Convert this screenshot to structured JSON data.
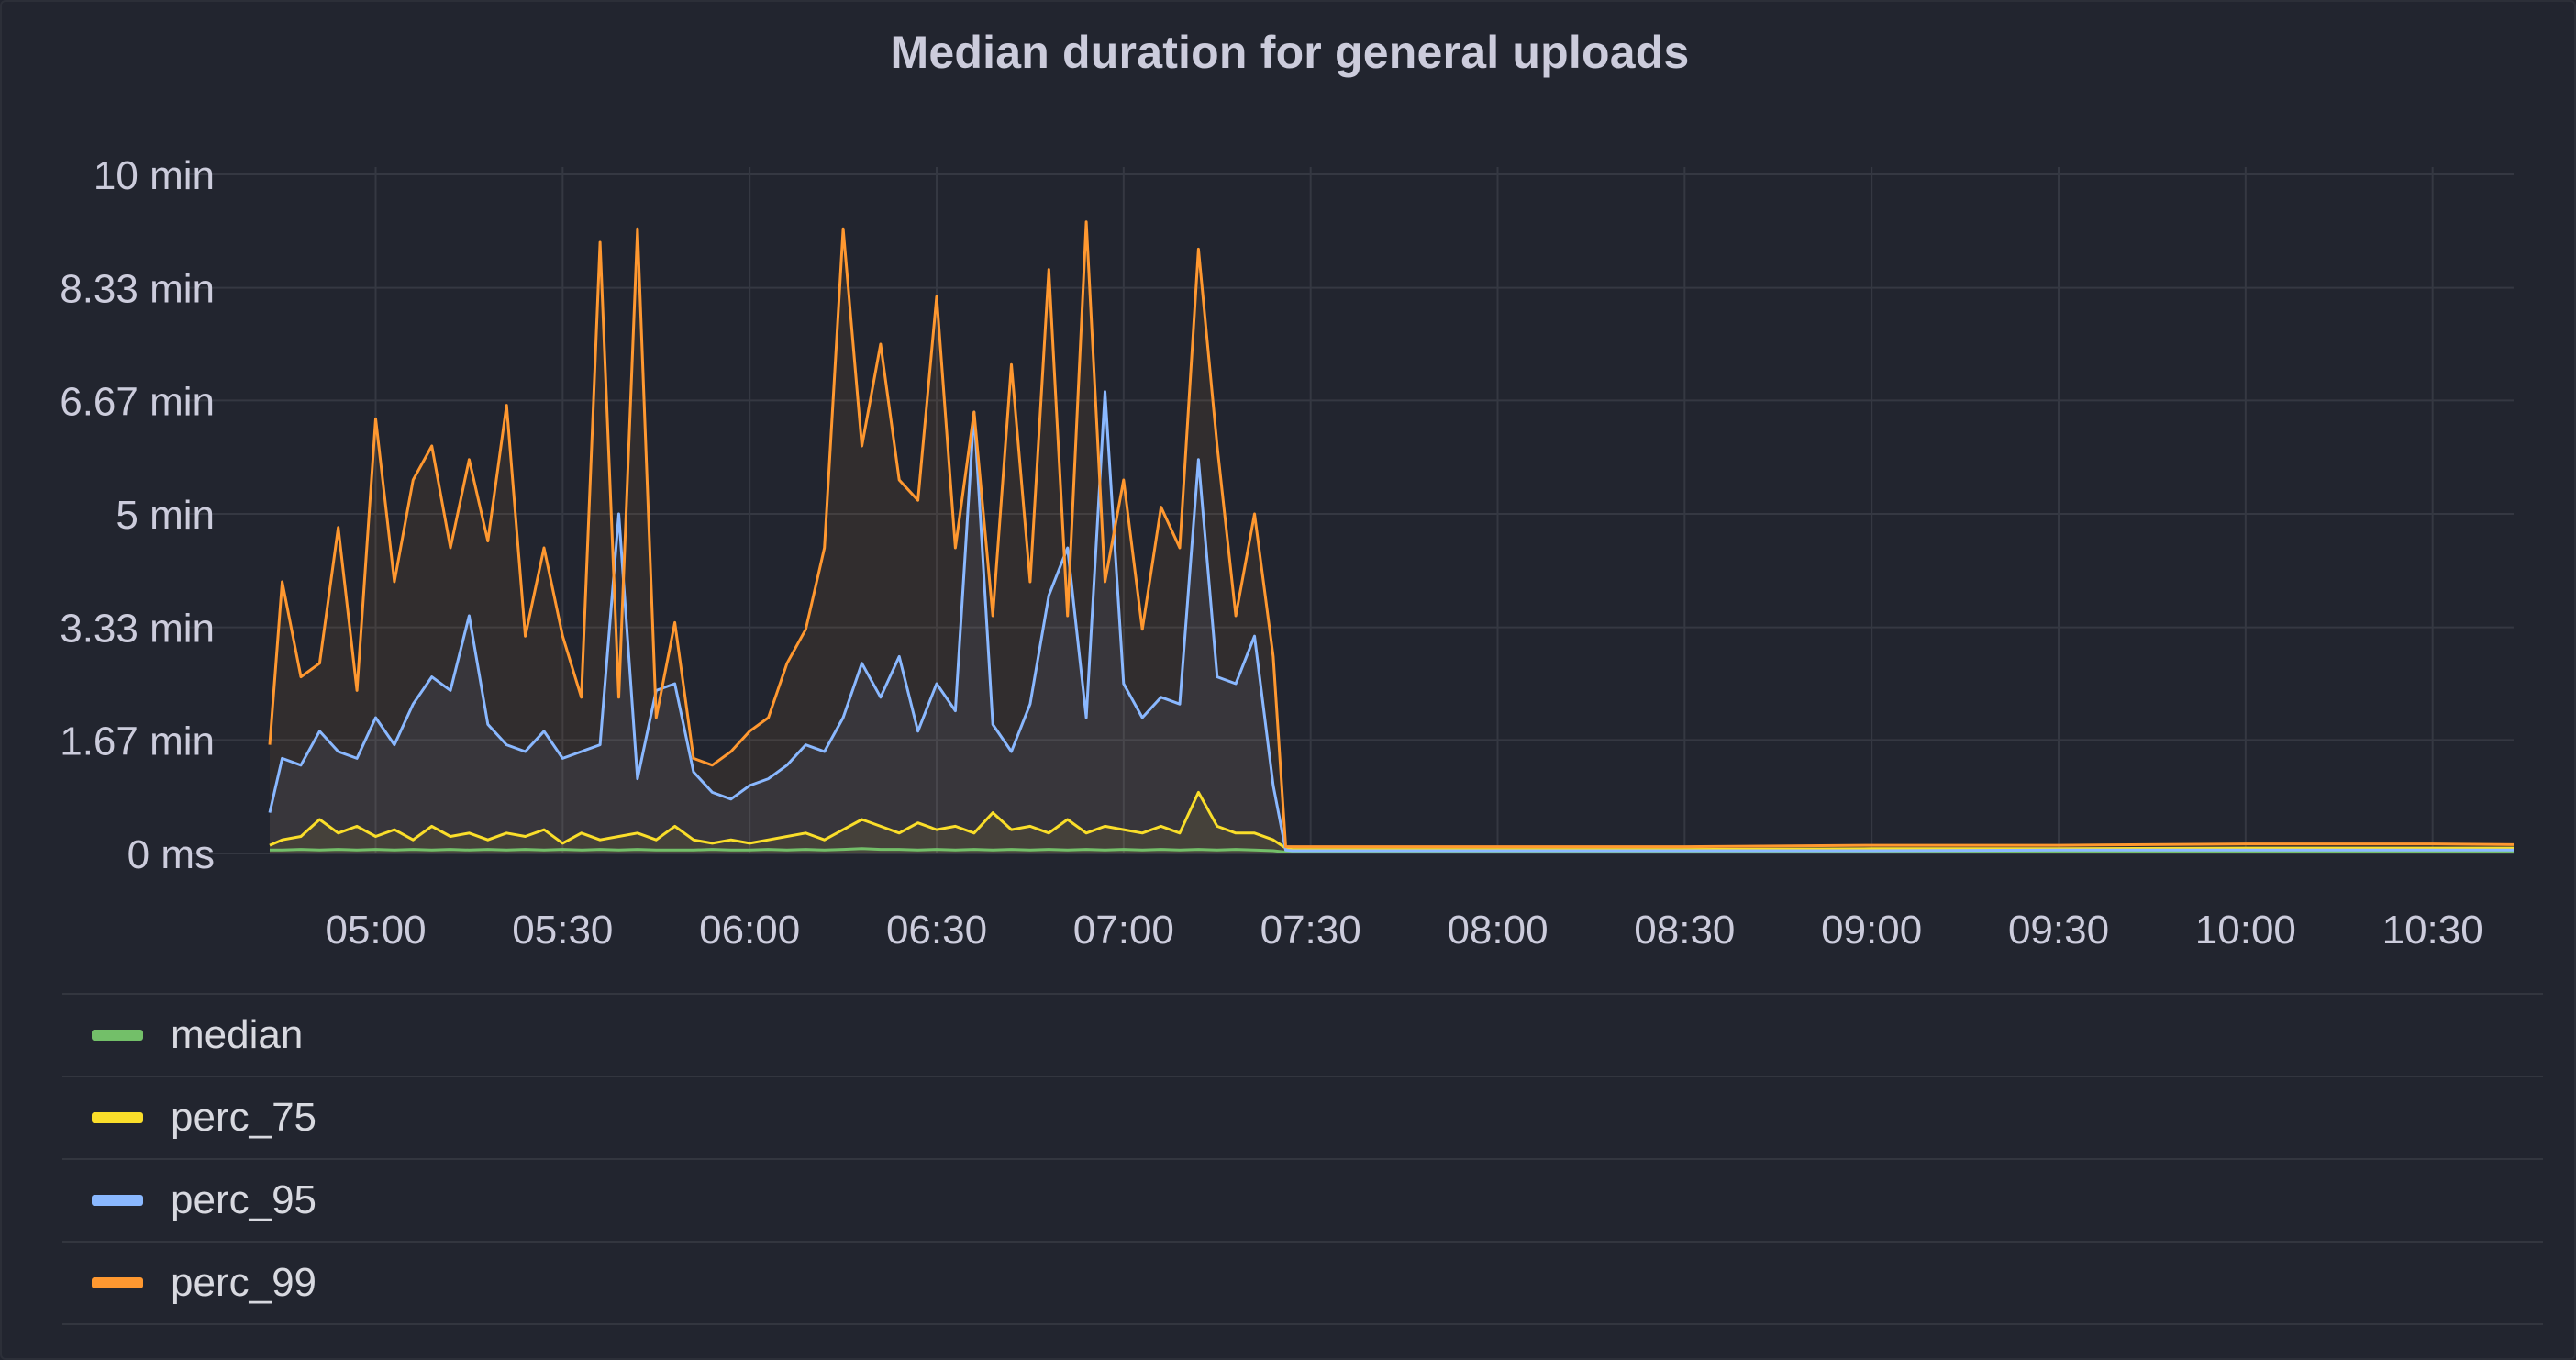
{
  "chart_data": {
    "type": "line",
    "title": "Median duration for general uploads",
    "y_unit_note": "minutes",
    "ylim": [
      0,
      10
    ],
    "y_ticks": [
      0,
      1.67,
      3.33,
      5,
      6.67,
      8.33,
      10
    ],
    "y_tick_labels": [
      "0 ms",
      "1.67 min",
      "3.33 min",
      "5 min",
      "6.67 min",
      "8.33 min",
      "10 min"
    ],
    "xlim": [
      "04:43",
      "10:43"
    ],
    "x_ticks": [
      "05:00",
      "05:30",
      "06:00",
      "06:30",
      "07:00",
      "07:30",
      "08:00",
      "08:30",
      "09:00",
      "09:30",
      "10:00",
      "10:30"
    ],
    "grid": true,
    "legend_position": "bottom",
    "x": [
      "04:43",
      "04:45",
      "04:48",
      "04:51",
      "04:54",
      "04:57",
      "05:00",
      "05:03",
      "05:06",
      "05:09",
      "05:12",
      "05:15",
      "05:18",
      "05:21",
      "05:24",
      "05:27",
      "05:30",
      "05:33",
      "05:36",
      "05:39",
      "05:42",
      "05:45",
      "05:48",
      "05:51",
      "05:54",
      "05:57",
      "06:00",
      "06:03",
      "06:06",
      "06:09",
      "06:12",
      "06:15",
      "06:18",
      "06:21",
      "06:24",
      "06:27",
      "06:30",
      "06:33",
      "06:36",
      "06:39",
      "06:42",
      "06:45",
      "06:48",
      "06:51",
      "06:54",
      "06:57",
      "07:00",
      "07:03",
      "07:06",
      "07:09",
      "07:12",
      "07:15",
      "07:18",
      "07:21",
      "07:24",
      "07:26",
      "07:27",
      "07:30",
      "08:00",
      "08:30",
      "09:00",
      "09:30",
      "10:00",
      "10:30",
      "10:43"
    ],
    "series": [
      {
        "name": "median",
        "color": "#73bf69",
        "values": [
          0.05,
          0.05,
          0.06,
          0.05,
          0.06,
          0.05,
          0.06,
          0.05,
          0.06,
          0.05,
          0.06,
          0.05,
          0.06,
          0.05,
          0.06,
          0.05,
          0.06,
          0.05,
          0.06,
          0.05,
          0.06,
          0.05,
          0.05,
          0.05,
          0.06,
          0.05,
          0.05,
          0.06,
          0.05,
          0.06,
          0.05,
          0.06,
          0.07,
          0.06,
          0.06,
          0.05,
          0.06,
          0.05,
          0.06,
          0.05,
          0.06,
          0.05,
          0.06,
          0.05,
          0.06,
          0.05,
          0.06,
          0.05,
          0.06,
          0.05,
          0.06,
          0.05,
          0.06,
          0.05,
          0.04,
          0.02,
          0.02,
          0.02,
          0.02,
          0.02,
          0.02,
          0.02,
          0.03,
          0.03,
          0.03
        ]
      },
      {
        "name": "perc_75",
        "color": "#fade2a",
        "values": [
          0.12,
          0.2,
          0.25,
          0.5,
          0.3,
          0.4,
          0.25,
          0.35,
          0.2,
          0.4,
          0.25,
          0.3,
          0.2,
          0.3,
          0.25,
          0.35,
          0.15,
          0.3,
          0.2,
          0.25,
          0.3,
          0.2,
          0.4,
          0.2,
          0.15,
          0.2,
          0.15,
          0.2,
          0.25,
          0.3,
          0.2,
          0.35,
          0.5,
          0.4,
          0.3,
          0.45,
          0.35,
          0.4,
          0.3,
          0.6,
          0.35,
          0.4,
          0.3,
          0.5,
          0.3,
          0.4,
          0.35,
          0.3,
          0.4,
          0.3,
          0.9,
          0.4,
          0.3,
          0.3,
          0.2,
          0.08,
          0.06,
          0.06,
          0.06,
          0.06,
          0.07,
          0.07,
          0.08,
          0.08,
          0.08
        ]
      },
      {
        "name": "perc_95",
        "color": "#8ab8ff",
        "values": [
          0.6,
          1.4,
          1.3,
          1.8,
          1.5,
          1.4,
          2.0,
          1.6,
          2.2,
          2.6,
          2.4,
          3.5,
          1.9,
          1.6,
          1.5,
          1.8,
          1.4,
          1.5,
          1.6,
          5.0,
          1.1,
          2.4,
          2.5,
          1.2,
          0.9,
          0.8,
          1.0,
          1.1,
          1.3,
          1.6,
          1.5,
          2.0,
          2.8,
          2.3,
          2.9,
          1.8,
          2.5,
          2.1,
          6.5,
          1.9,
          1.5,
          2.2,
          3.8,
          4.5,
          2.0,
          6.8,
          2.5,
          2.0,
          2.3,
          2.2,
          5.8,
          2.6,
          2.5,
          3.2,
          1.0,
          0.05,
          0.04,
          0.04,
          0.04,
          0.04,
          0.04,
          0.05,
          0.05,
          0.05,
          0.05
        ]
      },
      {
        "name": "perc_99",
        "color": "#ff9830",
        "values": [
          1.6,
          4.0,
          2.6,
          2.8,
          4.8,
          2.4,
          6.4,
          4.0,
          5.5,
          6.0,
          4.5,
          5.8,
          4.6,
          6.6,
          3.2,
          4.5,
          3.2,
          2.3,
          9.0,
          2.3,
          9.2,
          2.0,
          3.4,
          1.4,
          1.3,
          1.5,
          1.8,
          2.0,
          2.8,
          3.3,
          4.5,
          9.2,
          6.0,
          7.5,
          5.5,
          5.2,
          8.2,
          4.5,
          6.5,
          3.5,
          7.2,
          4.0,
          8.6,
          3.5,
          9.3,
          4.0,
          5.5,
          3.3,
          5.1,
          4.5,
          8.9,
          6.0,
          3.5,
          5.0,
          2.9,
          0.1,
          0.1,
          0.1,
          0.1,
          0.1,
          0.12,
          0.12,
          0.14,
          0.14,
          0.13
        ]
      }
    ]
  }
}
